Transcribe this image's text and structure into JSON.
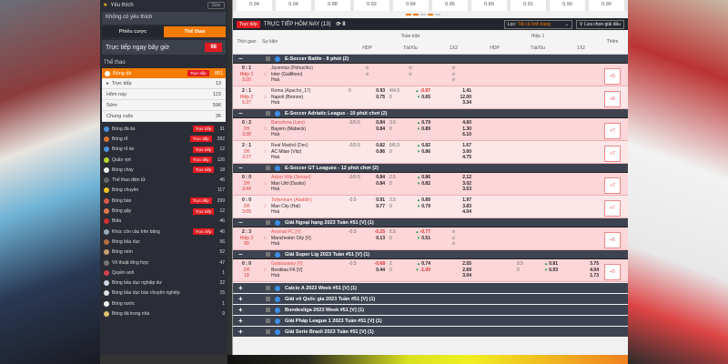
{
  "sidebar": {
    "favorites_title": "Yêu thích",
    "edit_label": "Sửa",
    "no_favorites": "Không có yêu thích",
    "tabs": [
      {
        "label": "Phiếu cược",
        "active": false
      },
      {
        "label": "Thể thao",
        "active": true
      }
    ],
    "live_now": {
      "label": "Trực tiếp ngay bây giờ",
      "count": "98"
    },
    "sports_heading": "Thể thao",
    "main_sport": {
      "label": "Bóng đá",
      "live_tag": "Trực tiếp",
      "count": "851"
    },
    "sub_items": [
      {
        "label": "Trực tiếp",
        "count": "13"
      },
      {
        "label": "Hôm nay",
        "count": "123"
      },
      {
        "label": "Sớm",
        "count": "596"
      },
      {
        "label": "Chung cuộc",
        "count": "36"
      }
    ],
    "items": [
      {
        "label": "Bóng đá ảo",
        "live": true,
        "count": "31",
        "color": "#4a90d9"
      },
      {
        "label": "Bóng rổ",
        "live": true,
        "count": "282",
        "color": "#d9752b"
      },
      {
        "label": "Bóng rổ ảo",
        "live": true,
        "count": "12",
        "color": "#4a90d9"
      },
      {
        "label": "Quần vợt",
        "live": true,
        "count": "126",
        "color": "#b8d430"
      },
      {
        "label": "Bóng chày",
        "live": true,
        "count": "18",
        "color": "#eeeeee"
      },
      {
        "label": "Thể thao điện tử",
        "live": false,
        "count": "46",
        "color": "#666666"
      },
      {
        "label": "Bóng chuyền",
        "live": false,
        "count": "117",
        "color": "#f0c020"
      },
      {
        "label": "Bóng bàn",
        "live": true,
        "count": "299",
        "color": "#d85a4a"
      },
      {
        "label": "Bóng gậy",
        "live": true,
        "count": "12",
        "color": "#e07a50"
      },
      {
        "label": "Bida",
        "live": false,
        "count": "46",
        "color": "#d03030"
      },
      {
        "label": "Khúc côn cầu trên băng",
        "live": true,
        "count": "46",
        "color": "#9ab"
      },
      {
        "label": "Bóng bầu dục",
        "live": false,
        "count": "56",
        "color": "#b07040"
      },
      {
        "label": "Bóng ném",
        "live": false,
        "count": "52",
        "color": "#c8a070"
      },
      {
        "label": "Võ thuật tổng hợp",
        "live": false,
        "count": "47",
        "color": "#777777"
      },
      {
        "label": "Quyền anh",
        "live": false,
        "count": "1",
        "color": "#d04050"
      },
      {
        "label": "Bóng bầu dục nghiệp dư",
        "live": false,
        "count": "22",
        "color": "#cfd8e8"
      },
      {
        "label": "Bóng bầu dục bán chuyên nghiệp",
        "live": false,
        "count": "15",
        "color": "#e0e0e0"
      },
      {
        "label": "Bóng nước",
        "live": false,
        "count": "1",
        "color": "#ffffff"
      },
      {
        "label": "Bóng đá trong nhà",
        "live": false,
        "count": "9",
        "color": "#e0c070"
      }
    ]
  },
  "main": {
    "top_odds": [
      "0.94",
      "0.94",
      "0.88",
      "0.92",
      "0.84",
      "0.96",
      "0.89",
      "0.91",
      "0.90",
      "0.90"
    ],
    "header": {
      "live_badge": "Trực tiếp",
      "title": "TRỰC TIẾP HÔM NAY (13)",
      "refresh_count": "8",
      "filter_label": "Lọc:",
      "filter_value": "Tất cả tình trạng",
      "pick_league": "Lựa chọn giải đấu"
    },
    "columns": {
      "time": "Thời gian",
      "event": "Sự kiện",
      "full_time": "Toàn trận",
      "first_half": "Hiệp 1",
      "hdp": "HDP",
      "ou": "Tài/Xỉu",
      "x12": "1X2",
      "more": "Thêm"
    },
    "groups": [
      {
        "title": "E-Soccer Battle - 8 phút (2)",
        "matches": [
          {
            "score": "0 : 1",
            "period": "Hiệp 1",
            "clock": "3:20",
            "home": "Juventus (Petruchio)",
            "away": "Inter (Gallifoon)",
            "draw": "Hoà",
            "home_fav": false,
            "ft_locked": true,
            "more": "+5"
          },
          {
            "score": "2 : 1",
            "period": "Hiệp 2",
            "clock": "5:37",
            "home": "Roma (Apacho_17)",
            "away": "Napoli (Bronon)",
            "draw": "Hoà",
            "home_fav": false,
            "ft": {
              "hdp_line": "0",
              "hdp": [
                "0.93",
                "0.75"
              ],
              "ou_line": "4/4.5",
              "ou_line2": "0",
              "ou": [
                "-0.97",
                "0.65"
              ],
              "x12": [
                "1.41",
                "12.00",
                "3.34"
              ]
            },
            "more": "+8"
          }
        ]
      },
      {
        "title": "E-Soccer Adriatic League - 10 phút chơi (2)",
        "matches": [
          {
            "score": "0 : 2",
            "period": "2H",
            "clock": "3:38",
            "home": "Barcelona (Lam)",
            "away": "Bayern (Mabeck)",
            "draw": "Hoà",
            "home_fav": true,
            "ft": {
              "hdp_line": "-0/0.5",
              "hdp": [
                "0.84",
                "0.84"
              ],
              "ou_line": "3.5",
              "ou_line2": "0",
              "ou": [
                "0.79",
                "0.89"
              ],
              "x12": [
                "4.60",
                "1.30",
                "6.10"
              ]
            },
            "more": "+7"
          },
          {
            "score": "2 : 1",
            "period": "2H",
            "clock": "3:27",
            "home": "Real Madrid (Dec)",
            "away": "AC Milan (Vitz)",
            "draw": "Hoà",
            "home_fav": false,
            "ft": {
              "hdp_line": "-0/0.5",
              "hdp": [
                "0.82",
                "0.86"
              ],
              "ou_line": "6/6.5",
              "ou_line2": "0",
              "ou": [
                "0.82",
                "0.86"
              ],
              "x12": [
                "1.67",
                "3.60",
                "4.75"
              ]
            },
            "more": "+7"
          }
        ]
      },
      {
        "title": "E-Soccer GT Leagues - 12 phút chơi (2)",
        "matches": [
          {
            "score": "0 : 0",
            "period": "2H",
            "clock": "3:44",
            "home": "Aston Villa (Sensei)",
            "away": "Man Utd (Dusko)",
            "draw": "Hoà",
            "home_fav": true,
            "ft": {
              "hdp_line": "-0/0.5",
              "hdp": [
                "0.84",
                "0.84"
              ],
              "ou_line": "2.5",
              "ou_line2": "0",
              "ou": [
                "0.86",
                "0.82"
              ],
              "x12": [
                "2.12",
                "3.02",
                "3.53"
              ]
            },
            "more": "+7"
          },
          {
            "score": "0 : 0",
            "period": "2H",
            "clock": "3:09",
            "home": "Tottenham (Aladdin)",
            "away": "Man City (Hal)",
            "draw": "Hoà",
            "home_fav": true,
            "ft": {
              "hdp_line": "-0.5",
              "hdp": [
                "0.91",
                "0.77"
              ],
              "ou_line": "3.5",
              "ou_line2": "0",
              "ou": [
                "0.89",
                "0.79"
              ],
              "x12": [
                "1.97",
                "3.83",
                "4.04"
              ]
            },
            "more": "+7"
          }
        ]
      },
      {
        "title": "Giải Ngoại hạng 2023 Tuần #51 [V] (1)",
        "matches": [
          {
            "score": "2 : 3",
            "period": "Hiệp 2",
            "clock": "80",
            "home": "Arsenal FC [V]",
            "away": "Manchester City [V]",
            "draw": "Hoà",
            "home_fav": true,
            "ft": {
              "hdp_line": "-0.5",
              "hdp": [
                "-0.25",
                "0.13"
              ],
              "ou_line": "5.5",
              "ou_line2": "0",
              "ou": [
                "-0.77",
                "0.51"
              ],
              "x12_locked": true
            },
            "more": "+5"
          }
        ]
      },
      {
        "title": "Giải Super Lig 2023 Tuần #51 [V] (1)",
        "matches": [
          {
            "score": "0 : 0",
            "period": "2H",
            "clock": "18",
            "home": "Galatasaray [V]",
            "away": "Besiktas FK [V]",
            "draw": "Hoà",
            "home_fav": true,
            "ft": {
              "hdp_line": "-0.5",
              "hdp": [
                "-0.68",
                "0.44"
              ],
              "ou_line": "2",
              "ou_line2": "0",
              "ou": [
                "0.74",
                "-1.00"
              ],
              "x12": [
                "2.55",
                "2.69",
                "3.04"
              ]
            },
            "ht": {
              "ou_line": "0.5",
              "ou_line2": "0",
              "ou": [
                "0.81",
                "0.93"
              ],
              "x12": [
                "3.75",
                "4.04",
                "1.73"
              ]
            },
            "more": "+5"
          }
        ]
      }
    ],
    "collapsed_groups": [
      "Calcio A 2023 Week #51 [V] (1)",
      "Giải vô Quốc gia 2023 Tuần #51 [V] (1)",
      "Bundesliga 2023 Week #51 [V] (1)",
      "Giải Pháp League 1 2023 Tuần #51 [V] (1)",
      "Giải Serie Brazil 2023 Tuần #51 [V] (1)"
    ]
  },
  "colors": {
    "accent": "#f57c00",
    "live_red": "#e31b23",
    "row_live": "#fcd6d8",
    "group_header": "#3d4350"
  }
}
